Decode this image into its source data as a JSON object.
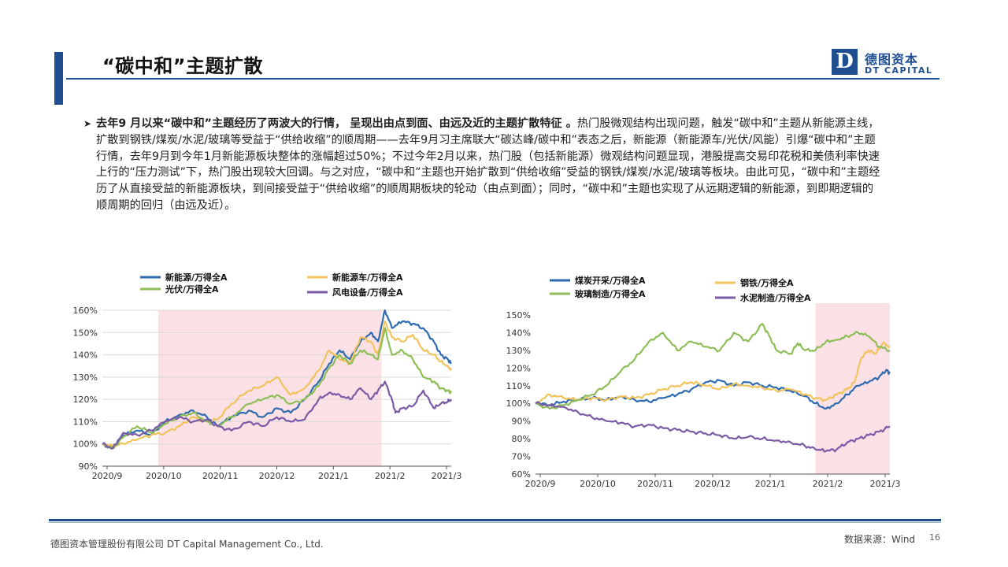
{
  "header": {
    "title": "“碳中和”主题扩散",
    "logo_letter": "D",
    "logo_cn": "德图资本",
    "logo_en": "DT CAPITAL"
  },
  "body": {
    "bold_lead": "去年9 月以来“碳中和”主题经历了两波大的行情， 呈现出由点到面、由远及近的主题扩散特征 。",
    "rest": "热门股微观结构出现问题，触发“碳中和”主题从新能源主线，扩散到钢铁/煤炭/水泥/玻璃等受益于“供给收缩”的顺周期——去年9月习主席联大“碳达峰/碳中和”表态之后，新能源（新能源车/光伏/风能）引爆“碳中和”主题行情，去年9月到今年1月新能源板块整体的涨幅超过50%；不过今年2月以来，热门股（包括新能源）微观结构问题显现，港股提高交易印花税和美债利率快速上行的“压力测试”下，热门股出现较大回调。与之对应，“碳中和”主题也开始扩散到“供给收缩”受益的钢铁/煤炭/水泥/玻璃等板块。由此可见，“碳中和”主题经历了从直接受益的新能源板块，到间接受益于“供给收缩”的顺周期板块的轮动（由点到面）；同时，“碳中和”主题也实现了从远期逻辑的新能源，到即期逻辑的顺周期的回归（由远及近）。"
  },
  "footer": {
    "company": "德图资本管理股份有限公司  DT Capital Management  Co., Ltd.",
    "source": "数据来源：Wind",
    "page": "16"
  },
  "colors": {
    "brand": "#1f4e91",
    "blue": "#2e6bb0",
    "yellow": "#f2c35c",
    "green": "#8fbd58",
    "purple": "#7b5aa6",
    "highlight": "#f9d7dc"
  },
  "chart_data": [
    {
      "type": "line",
      "x_ticks": [
        "2020/9",
        "2020/10",
        "2020/11",
        "2020/12",
        "2021/1",
        "2021/2",
        "2021/3"
      ],
      "ylim": [
        0.9,
        1.6
      ],
      "y_ticks": [
        "90%",
        "100%",
        "110%",
        "120%",
        "130%",
        "140%",
        "150%",
        "160%"
      ],
      "highlight_range": [
        0.16,
        0.8
      ],
      "grid": true,
      "legend": "top",
      "series": [
        {
          "name": "新能源/万得全A",
          "color": "#2e6bb0",
          "points": [
            [
              0,
              1.0
            ],
            [
              0.03,
              0.98
            ],
            [
              0.06,
              1.04
            ],
            [
              0.1,
              1.06
            ],
            [
              0.14,
              1.04
            ],
            [
              0.18,
              1.1
            ],
            [
              0.22,
              1.13
            ],
            [
              0.26,
              1.15
            ],
            [
              0.3,
              1.12
            ],
            [
              0.33,
              1.08
            ],
            [
              0.37,
              1.12
            ],
            [
              0.42,
              1.15
            ],
            [
              0.46,
              1.12
            ],
            [
              0.5,
              1.16
            ],
            [
              0.54,
              1.14
            ],
            [
              0.58,
              1.2
            ],
            [
              0.62,
              1.28
            ],
            [
              0.65,
              1.36
            ],
            [
              0.68,
              1.42
            ],
            [
              0.71,
              1.38
            ],
            [
              0.74,
              1.46
            ],
            [
              0.77,
              1.5
            ],
            [
              0.79,
              1.46
            ],
            [
              0.81,
              1.6
            ],
            [
              0.83,
              1.52
            ],
            [
              0.86,
              1.55
            ],
            [
              0.89,
              1.54
            ],
            [
              0.92,
              1.52
            ],
            [
              0.95,
              1.46
            ],
            [
              0.97,
              1.4
            ],
            [
              0.99,
              1.38
            ],
            [
              1,
              1.36
            ]
          ]
        },
        {
          "name": "新能源车/万得全A",
          "color": "#f2c35c",
          "points": [
            [
              0,
              1.0
            ],
            [
              0.03,
              0.99
            ],
            [
              0.06,
              1.0
            ],
            [
              0.1,
              1.02
            ],
            [
              0.14,
              1.04
            ],
            [
              0.18,
              1.05
            ],
            [
              0.22,
              1.08
            ],
            [
              0.26,
              1.12
            ],
            [
              0.3,
              1.1
            ],
            [
              0.33,
              1.11
            ],
            [
              0.37,
              1.18
            ],
            [
              0.42,
              1.24
            ],
            [
              0.46,
              1.26
            ],
            [
              0.5,
              1.3
            ],
            [
              0.54,
              1.22
            ],
            [
              0.58,
              1.25
            ],
            [
              0.62,
              1.33
            ],
            [
              0.65,
              1.42
            ],
            [
              0.68,
              1.38
            ],
            [
              0.71,
              1.36
            ],
            [
              0.74,
              1.48
            ],
            [
              0.77,
              1.46
            ],
            [
              0.79,
              1.4
            ],
            [
              0.81,
              1.55
            ],
            [
              0.83,
              1.48
            ],
            [
              0.86,
              1.46
            ],
            [
              0.89,
              1.49
            ],
            [
              0.92,
              1.42
            ],
            [
              0.95,
              1.4
            ],
            [
              0.97,
              1.37
            ],
            [
              0.99,
              1.35
            ],
            [
              1,
              1.33
            ]
          ]
        },
        {
          "name": "光伏/万得全A",
          "color": "#8fbd58",
          "points": [
            [
              0,
              1.0
            ],
            [
              0.03,
              0.98
            ],
            [
              0.06,
              1.03
            ],
            [
              0.1,
              1.08
            ],
            [
              0.14,
              1.05
            ],
            [
              0.18,
              1.09
            ],
            [
              0.22,
              1.12
            ],
            [
              0.26,
              1.14
            ],
            [
              0.3,
              1.1
            ],
            [
              0.33,
              1.08
            ],
            [
              0.37,
              1.12
            ],
            [
              0.42,
              1.18
            ],
            [
              0.46,
              1.2
            ],
            [
              0.5,
              1.22
            ],
            [
              0.54,
              1.18
            ],
            [
              0.58,
              1.2
            ],
            [
              0.62,
              1.26
            ],
            [
              0.65,
              1.34
            ],
            [
              0.68,
              1.4
            ],
            [
              0.71,
              1.36
            ],
            [
              0.74,
              1.42
            ],
            [
              0.77,
              1.4
            ],
            [
              0.79,
              1.38
            ],
            [
              0.81,
              1.52
            ],
            [
              0.83,
              1.4
            ],
            [
              0.86,
              1.42
            ],
            [
              0.89,
              1.38
            ],
            [
              0.92,
              1.3
            ],
            [
              0.95,
              1.28
            ],
            [
              0.97,
              1.25
            ],
            [
              0.99,
              1.24
            ],
            [
              1,
              1.23
            ]
          ]
        },
        {
          "name": "风电设备/万得全A",
          "color": "#7b5aa6",
          "points": [
            [
              0,
              1.0
            ],
            [
              0.03,
              0.98
            ],
            [
              0.06,
              1.05
            ],
            [
              0.1,
              1.04
            ],
            [
              0.14,
              1.06
            ],
            [
              0.18,
              1.1
            ],
            [
              0.22,
              1.12
            ],
            [
              0.26,
              1.1
            ],
            [
              0.3,
              1.11
            ],
            [
              0.33,
              1.08
            ],
            [
              0.37,
              1.06
            ],
            [
              0.42,
              1.1
            ],
            [
              0.46,
              1.08
            ],
            [
              0.5,
              1.12
            ],
            [
              0.54,
              1.1
            ],
            [
              0.58,
              1.11
            ],
            [
              0.62,
              1.2
            ],
            [
              0.65,
              1.23
            ],
            [
              0.68,
              1.22
            ],
            [
              0.71,
              1.2
            ],
            [
              0.74,
              1.25
            ],
            [
              0.77,
              1.2
            ],
            [
              0.79,
              1.24
            ],
            [
              0.81,
              1.28
            ],
            [
              0.83,
              1.2
            ],
            [
              0.84,
              1.14
            ],
            [
              0.86,
              1.16
            ],
            [
              0.89,
              1.17
            ],
            [
              0.92,
              1.24
            ],
            [
              0.95,
              1.16
            ],
            [
              0.97,
              1.18
            ],
            [
              0.99,
              1.19
            ],
            [
              1,
              1.2
            ]
          ]
        }
      ]
    },
    {
      "type": "line",
      "x_ticks": [
        "2020/9",
        "2020/10",
        "2020/11",
        "2020/12",
        "2021/1",
        "2021/2",
        "2021/3"
      ],
      "ylim": [
        0.6,
        1.5
      ],
      "y_ticks": [
        "60%",
        "70%",
        "80%",
        "90%",
        "100%",
        "110%",
        "120%",
        "130%",
        "140%",
        "150%"
      ],
      "highlight_range": [
        0.79,
        1.0
      ],
      "grid": false,
      "legend": "top",
      "series": [
        {
          "name": "煤炭开采/万得全A",
          "color": "#2e6bb0",
          "points": [
            [
              0,
              1.0
            ],
            [
              0.04,
              0.99
            ],
            [
              0.08,
              1.01
            ],
            [
              0.12,
              1.02
            ],
            [
              0.16,
              1.03
            ],
            [
              0.2,
              1.02
            ],
            [
              0.24,
              1.04
            ],
            [
              0.28,
              1.02
            ],
            [
              0.32,
              1.01
            ],
            [
              0.36,
              1.03
            ],
            [
              0.4,
              1.05
            ],
            [
              0.44,
              1.08
            ],
            [
              0.48,
              1.12
            ],
            [
              0.52,
              1.13
            ],
            [
              0.56,
              1.1
            ],
            [
              0.6,
              1.12
            ],
            [
              0.64,
              1.1
            ],
            [
              0.68,
              1.09
            ],
            [
              0.72,
              1.07
            ],
            [
              0.76,
              1.04
            ],
            [
              0.79,
              1.0
            ],
            [
              0.82,
              0.97
            ],
            [
              0.85,
              1.0
            ],
            [
              0.88,
              1.05
            ],
            [
              0.91,
              1.1
            ],
            [
              0.94,
              1.12
            ],
            [
              0.97,
              1.15
            ],
            [
              0.99,
              1.19
            ],
            [
              1,
              1.17
            ]
          ]
        },
        {
          "name": "钢铁/万得全A",
          "color": "#f2c35c",
          "points": [
            [
              0,
              1.0
            ],
            [
              0.04,
              1.05
            ],
            [
              0.08,
              1.03
            ],
            [
              0.12,
              1.02
            ],
            [
              0.16,
              1.03
            ],
            [
              0.2,
              1.02
            ],
            [
              0.24,
              1.04
            ],
            [
              0.28,
              1.03
            ],
            [
              0.32,
              1.05
            ],
            [
              0.36,
              1.08
            ],
            [
              0.4,
              1.1
            ],
            [
              0.44,
              1.12
            ],
            [
              0.48,
              1.1
            ],
            [
              0.52,
              1.08
            ],
            [
              0.56,
              1.11
            ],
            [
              0.6,
              1.1
            ],
            [
              0.64,
              1.09
            ],
            [
              0.68,
              1.07
            ],
            [
              0.72,
              1.08
            ],
            [
              0.76,
              1.05
            ],
            [
              0.79,
              1.03
            ],
            [
              0.82,
              1.02
            ],
            [
              0.85,
              1.05
            ],
            [
              0.88,
              1.08
            ],
            [
              0.9,
              1.12
            ],
            [
              0.92,
              1.26
            ],
            [
              0.94,
              1.3
            ],
            [
              0.96,
              1.28
            ],
            [
              0.98,
              1.34
            ],
            [
              1,
              1.32
            ]
          ]
        },
        {
          "name": "玻璃制造/万得全A",
          "color": "#8fbd58",
          "points": [
            [
              0,
              1.0
            ],
            [
              0.04,
              0.97
            ],
            [
              0.08,
              0.99
            ],
            [
              0.12,
              1.02
            ],
            [
              0.16,
              1.05
            ],
            [
              0.2,
              1.1
            ],
            [
              0.24,
              1.18
            ],
            [
              0.28,
              1.25
            ],
            [
              0.32,
              1.35
            ],
            [
              0.36,
              1.4
            ],
            [
              0.4,
              1.3
            ],
            [
              0.44,
              1.35
            ],
            [
              0.48,
              1.32
            ],
            [
              0.52,
              1.3
            ],
            [
              0.56,
              1.4
            ],
            [
              0.6,
              1.35
            ],
            [
              0.64,
              1.45
            ],
            [
              0.66,
              1.38
            ],
            [
              0.68,
              1.3
            ],
            [
              0.72,
              1.28
            ],
            [
              0.74,
              1.34
            ],
            [
              0.76,
              1.3
            ],
            [
              0.79,
              1.3
            ],
            [
              0.82,
              1.35
            ],
            [
              0.85,
              1.36
            ],
            [
              0.88,
              1.38
            ],
            [
              0.91,
              1.4
            ],
            [
              0.94,
              1.38
            ],
            [
              0.97,
              1.32
            ],
            [
              1,
              1.3
            ]
          ]
        },
        {
          "name": "水泥制造/万得全A",
          "color": "#7b5aa6",
          "points": [
            [
              0,
              1.0
            ],
            [
              0.04,
              0.99
            ],
            [
              0.08,
              0.98
            ],
            [
              0.12,
              0.95
            ],
            [
              0.16,
              0.92
            ],
            [
              0.2,
              0.9
            ],
            [
              0.24,
              0.89
            ],
            [
              0.28,
              0.87
            ],
            [
              0.32,
              0.88
            ],
            [
              0.36,
              0.86
            ],
            [
              0.4,
              0.85
            ],
            [
              0.44,
              0.84
            ],
            [
              0.48,
              0.83
            ],
            [
              0.52,
              0.82
            ],
            [
              0.56,
              0.8
            ],
            [
              0.6,
              0.81
            ],
            [
              0.64,
              0.8
            ],
            [
              0.68,
              0.79
            ],
            [
              0.72,
              0.78
            ],
            [
              0.76,
              0.76
            ],
            [
              0.79,
              0.74
            ],
            [
              0.82,
              0.73
            ],
            [
              0.85,
              0.74
            ],
            [
              0.88,
              0.78
            ],
            [
              0.91,
              0.8
            ],
            [
              0.94,
              0.82
            ],
            [
              0.97,
              0.84
            ],
            [
              1,
              0.87
            ]
          ]
        }
      ]
    }
  ]
}
